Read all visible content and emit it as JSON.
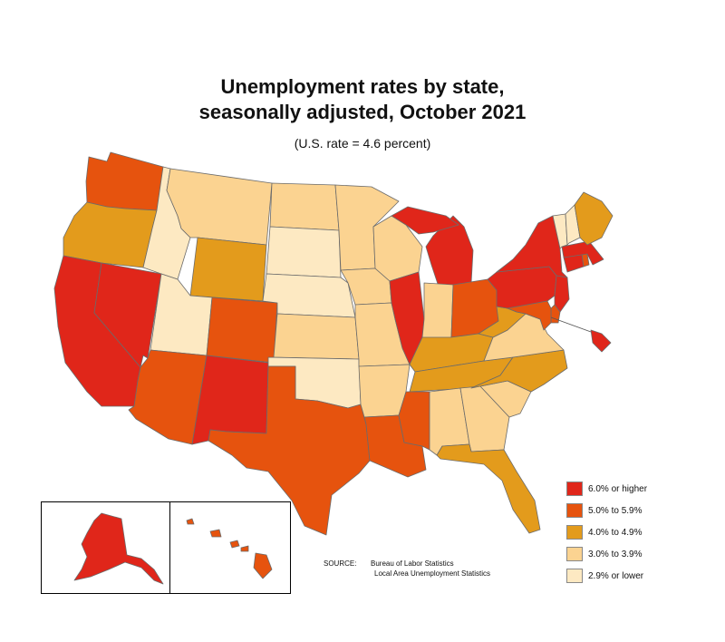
{
  "header": {
    "title_line1": "Unemployment rates by state,",
    "title_line2": "seasonally adjusted, October 2021",
    "subtitle": "(U.S. rate = 4.6 percent)"
  },
  "legend": {
    "items": [
      {
        "label": "6.0% or higher",
        "color": "#e0261a"
      },
      {
        "label": "5.0% to 5.9%",
        "color": "#e6530e"
      },
      {
        "label": "4.0% to 4.9%",
        "color": "#e39b1c"
      },
      {
        "label": "3.0% to 3.9%",
        "color": "#fbd391"
      },
      {
        "label": "2.9% or lower",
        "color": "#fde9c2"
      }
    ]
  },
  "source": {
    "label": "SOURCE:",
    "line1": "Bureau of Labor Statistics",
    "line2": "Local Area Unemployment Statistics"
  },
  "states": {
    "WA": 4,
    "OR": 3,
    "CA": 5,
    "NV": 5,
    "ID": 1,
    "MT": 2,
    "WY": 3,
    "UT": 1,
    "CO": 4,
    "AZ": 4,
    "NM": 5,
    "ND": 2,
    "SD": 1,
    "NE": 1,
    "KS": 2,
    "OK": 1,
    "TX": 4,
    "MN": 2,
    "IA": 2,
    "MO": 2,
    "AR": 2,
    "LA": 4,
    "WI": 2,
    "IL": 5,
    "MI": 5,
    "IN": 2,
    "OH": 4,
    "KY": 3,
    "TN": 3,
    "MS": 4,
    "AL": 2,
    "GA": 2,
    "FL": 3,
    "SC": 2,
    "NC": 3,
    "VA": 2,
    "WV": 3,
    "PA": 5,
    "NY": 5,
    "NJ": 5,
    "DE": 4,
    "MD": 4,
    "DC": 5,
    "CT": 5,
    "RI": 4,
    "MA": 5,
    "VT": 1,
    "NH": 1,
    "ME": 3,
    "AK": 5,
    "HI": 4
  }
}
